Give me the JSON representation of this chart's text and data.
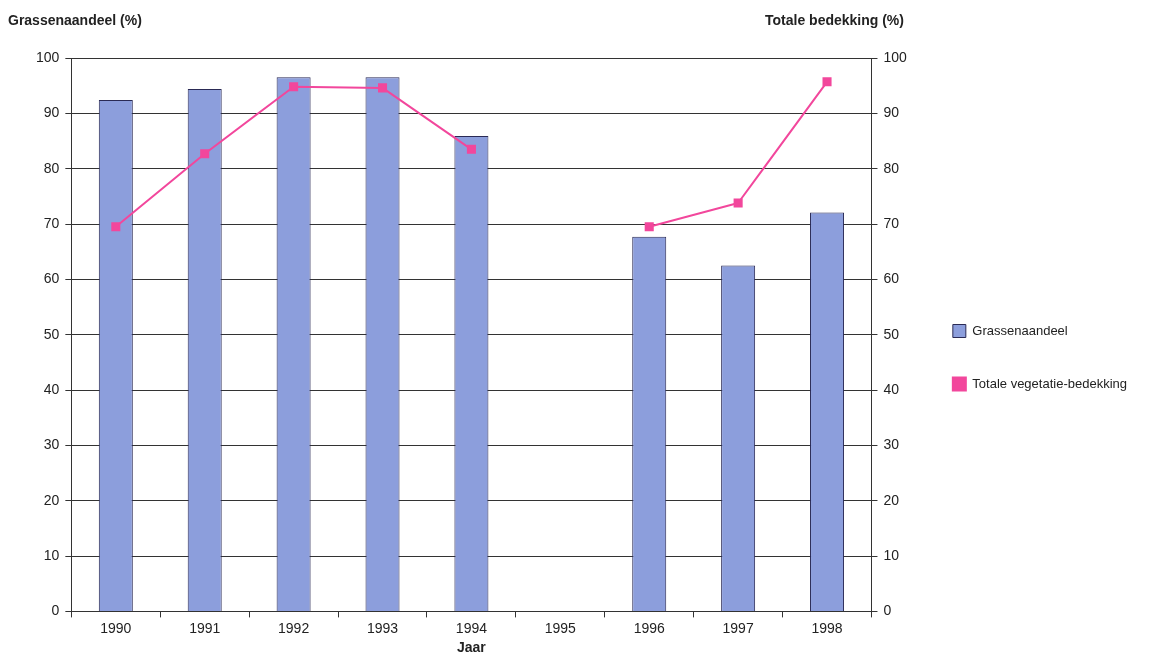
{
  "chart_data": {
    "type": "bar",
    "xlabel": "Jaar",
    "ylabel": "Grassenaandeel (%)",
    "y2label": "Totale bedekking (%)",
    "categories": [
      "1990",
      "1991",
      "1992",
      "1993",
      "1994",
      "1995",
      "1996",
      "1997",
      "1998"
    ],
    "series": [
      {
        "name": "Grassenaandeel",
        "color": "#8c9edc",
        "values": [
          92.4,
          94.4,
          96.5,
          96.5,
          85.9,
          null,
          67.7,
          62.5,
          72.1
        ]
      },
      {
        "name": "Totale vegetatie-bedekking",
        "type": "line",
        "axis": "y2",
        "color": "#f2479c",
        "values": [
          69.5,
          82.7,
          94.8,
          94.6,
          83.5,
          null,
          69.5,
          73.8,
          95.7
        ]
      }
    ],
    "ylim": [
      0,
      100
    ],
    "yticks": [
      0,
      10,
      20,
      30,
      40,
      50,
      60,
      70,
      80,
      90,
      100
    ],
    "y2lim": [
      0,
      100
    ],
    "y2ticks": [
      0,
      10,
      20,
      30,
      40,
      50,
      60,
      70,
      80,
      90,
      100
    ],
    "grid": "y",
    "legend": "right",
    "marker": "square"
  }
}
